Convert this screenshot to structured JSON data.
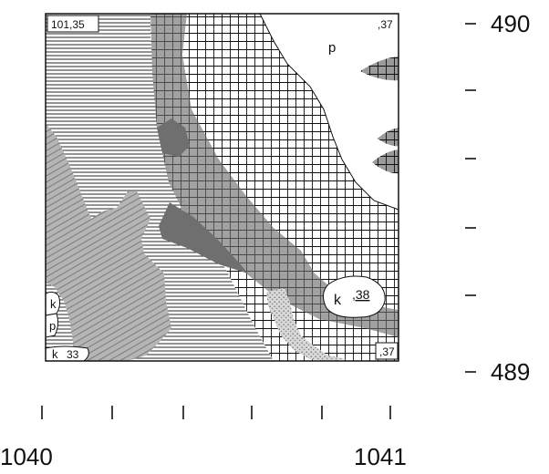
{
  "map": {
    "corner_labels": {
      "top_left": "101,35",
      "top_right": ",37",
      "bottom_right": ",37",
      "bottom_left": "33"
    },
    "area_labels": {
      "p_top": "p",
      "k_right": "k",
      "k_right_value": ",38",
      "k_left_top": "k",
      "p_left": "p",
      "k_left_bottom": "k"
    },
    "y_axis": {
      "top": "490",
      "bottom": "489",
      "minor_tick_count": 3
    },
    "x_axis": {
      "left": "1040",
      "right": "1041",
      "tick_count": 6
    },
    "colors": {
      "ink": "#111111",
      "grey_fill": "#9a9a9a",
      "dark_grey_fill": "#6f6f6f",
      "diagonal_fill": "#a8a8a8",
      "speckle_fill": "#cfcfcf",
      "paper": "#ffffff"
    },
    "patterns": [
      "horizontal-hatch",
      "grid-hatch",
      "solid-grey",
      "diagonal-stripe",
      "speckle",
      "blank"
    ]
  }
}
